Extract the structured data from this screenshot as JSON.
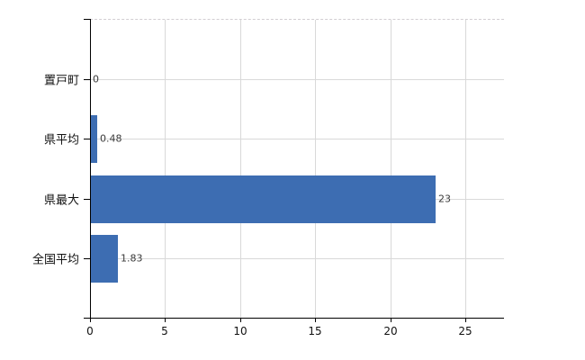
{
  "chart_data": {
    "type": "bar",
    "orientation": "horizontal",
    "title": "",
    "xlabel": "",
    "ylabel": "",
    "categories": [
      "置戸町",
      "県平均",
      "県最大",
      "全国平均"
    ],
    "values": [
      0,
      0.48,
      23,
      1.83
    ],
    "value_labels": [
      "0",
      "0.48",
      "23",
      "1.83"
    ],
    "xticks": [
      0,
      5,
      10,
      15,
      20,
      25
    ],
    "xtick_labels": [
      "0",
      "5",
      "10",
      "15",
      "20",
      "25"
    ],
    "xlim": [
      0,
      27.6
    ],
    "grid": true,
    "legend": false,
    "bar_color": "#3d6db2",
    "gridline_color": "#d9d9d9",
    "axis_color": "#000000",
    "value_label_color": "#3a3a3a"
  }
}
